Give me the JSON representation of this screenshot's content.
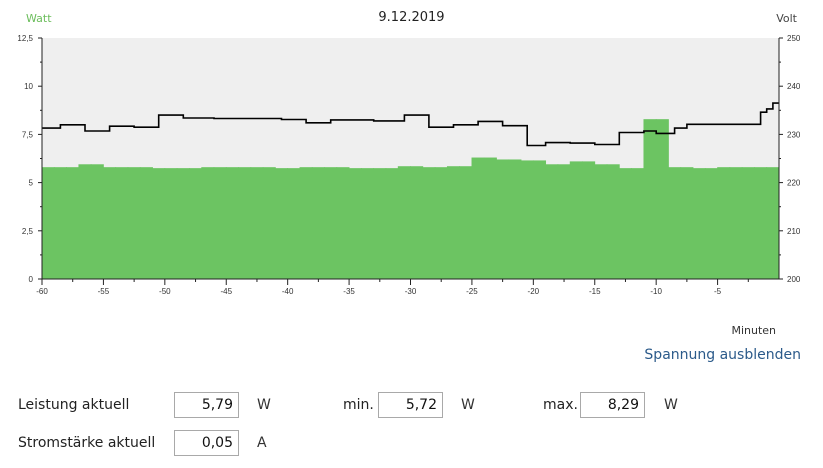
{
  "header": {
    "left_axis_label": "Watt",
    "date": "9.12.2019",
    "right_axis_label": "Volt"
  },
  "colors": {
    "power_bar": "#6cc462",
    "voltage_line": "#000000",
    "plot_background": "#efefef",
    "watt_label": "#6bbd5b",
    "link": "#2b5a8a"
  },
  "chart_data": {
    "type": "bar",
    "xlabel": "Minuten",
    "x_range": [
      -60,
      0
    ],
    "x_ticks": [
      "-60",
      "-55",
      "-50",
      "-45",
      "-40",
      "-35",
      "-30",
      "-25",
      "-20",
      "-15",
      "-10",
      "-5"
    ],
    "y_left_ticks": [
      "0",
      "2,5",
      "5",
      "7,5",
      "10",
      "12,5"
    ],
    "y_left_range": [
      0,
      12.5
    ],
    "y_right_ticks": [
      "200",
      "210",
      "220",
      "230",
      "240",
      "250"
    ],
    "y_right_range": [
      200,
      250
    ],
    "series": [
      {
        "type": "bar",
        "axis": "left",
        "x": [
          -60,
          -59,
          -58,
          -57,
          -56,
          -55,
          -54,
          -53,
          -52,
          -51,
          -50,
          -49,
          -48,
          -47,
          -46,
          -45,
          -44,
          -43,
          -42,
          -41,
          -40,
          -39,
          -38,
          -37,
          -36,
          -35,
          -34,
          -33,
          -32,
          -31,
          -30,
          -29,
          -28,
          -27,
          -26,
          -25,
          -24,
          -23,
          -22,
          -21,
          -20,
          -19,
          -18,
          -17,
          -16,
          -15,
          -14,
          -13,
          -12,
          -11,
          -10,
          -9,
          -8,
          -7,
          -6,
          -5,
          -4,
          -3,
          -2,
          -1
        ],
        "values": [
          5.8,
          5.8,
          5.8,
          5.95,
          5.95,
          5.8,
          5.8,
          5.8,
          5.8,
          5.75,
          5.75,
          5.75,
          5.75,
          5.8,
          5.8,
          5.8,
          5.8,
          5.8,
          5.8,
          5.75,
          5.75,
          5.8,
          5.8,
          5.8,
          5.8,
          5.75,
          5.75,
          5.75,
          5.75,
          5.85,
          5.85,
          5.8,
          5.8,
          5.85,
          5.85,
          6.3,
          6.3,
          6.2,
          6.2,
          6.15,
          6.15,
          5.95,
          5.95,
          6.1,
          6.1,
          5.95,
          5.95,
          5.75,
          5.75,
          8.29,
          8.29,
          5.8,
          5.8,
          5.75,
          5.75,
          5.8,
          5.8,
          5.8,
          5.8,
          5.8
        ]
      },
      {
        "type": "line",
        "axis": "right",
        "x": [
          -60,
          -58.5,
          -58.5,
          -56.5,
          -56.5,
          -54.5,
          -54.5,
          -52.5,
          -52.5,
          -50.5,
          -50.5,
          -48.5,
          -48.5,
          -46,
          -46,
          -44.5,
          -44.5,
          -40.5,
          -40.5,
          -38.5,
          -38.5,
          -36.5,
          -36.5,
          -33,
          -33,
          -30.5,
          -30.5,
          -28.5,
          -28.5,
          -26.5,
          -26.5,
          -24.5,
          -24.5,
          -22.5,
          -22.5,
          -20.5,
          -20.5,
          -19,
          -19,
          -17,
          -17,
          -15,
          -15,
          -13,
          -13,
          -11,
          -11,
          -10,
          -10,
          -8.5,
          -8.5,
          -7.5,
          -7.5,
          -1.5,
          -1.5,
          -1,
          -1,
          -0.5,
          -0.5,
          0
        ],
        "values": [
          231.3,
          231.3,
          232,
          232,
          230.7,
          230.7,
          231.7,
          231.7,
          231.5,
          231.5,
          234,
          234,
          233.4,
          233.4,
          233.3,
          233.3,
          233.3,
          233.3,
          233.1,
          233.1,
          232.4,
          232.4,
          233,
          233,
          232.8,
          232.8,
          234,
          234,
          231.5,
          231.5,
          232,
          232,
          232.7,
          232.7,
          231.8,
          231.8,
          227.7,
          227.7,
          228.3,
          228.3,
          228.2,
          228.2,
          227.9,
          227.9,
          230.4,
          230.4,
          230.7,
          230.7,
          230.2,
          230.2,
          231.3,
          231.3,
          232.1,
          232.1,
          234.6,
          234.6,
          235.3,
          235.3,
          236.5,
          236.5
        ]
      }
    ]
  },
  "controls": {
    "toggle_voltage_link": "Spannung ausblenden",
    "power_label": "Leistung aktuell",
    "power_value": "5,79",
    "power_unit": "W",
    "min_label": "min.",
    "min_value": "5,72",
    "min_unit": "W",
    "max_label": "max.",
    "max_value": "8,29",
    "max_unit": "W",
    "current_label": "Stromstärke aktuell",
    "current_value": "0,05",
    "current_unit": "A"
  }
}
